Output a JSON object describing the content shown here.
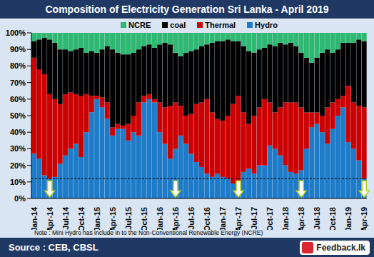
{
  "chart_data": {
    "type": "bar",
    "title": "Composition of Electricity Generation Sri Lanka - April 2019",
    "stacked": true,
    "grid": false,
    "legend": "top",
    "categories": [
      "Jan-14",
      null,
      null,
      "Apr-14",
      null,
      null,
      "Jul-14",
      null,
      null,
      "Oct-14",
      null,
      null,
      "Jan-15",
      null,
      null,
      "Apr-15",
      null,
      null,
      "Jul-15",
      null,
      null,
      "Oct-15",
      null,
      null,
      "Jan-16",
      null,
      null,
      "Apr-16",
      null,
      null,
      "Jul-16",
      null,
      null,
      "Oct-16",
      null,
      null,
      "Jan-17",
      null,
      null,
      "Apr-17",
      null,
      null,
      "Jul-17",
      null,
      null,
      "Oct-17",
      null,
      null,
      "Jan-18",
      null,
      null,
      "Apr-18",
      null,
      null,
      "Jul-18",
      null,
      null,
      "Oct-18",
      null,
      null,
      "Jan-19",
      null,
      null,
      "Apr-19"
    ],
    "series": [
      {
        "name": "NCRE",
        "color": "#2EB872",
        "values": [
          5,
          4,
          3,
          4,
          6,
          10,
          10,
          11,
          10,
          9,
          12,
          11,
          12,
          10,
          8,
          10,
          12,
          13,
          13,
          12,
          10,
          8,
          7,
          9,
          7,
          6,
          7,
          12,
          14,
          12,
          11,
          10,
          8,
          7,
          6,
          5,
          5,
          4,
          5,
          5,
          8,
          11,
          12,
          10,
          9,
          7,
          8,
          6,
          7,
          6,
          8,
          12,
          15,
          18,
          15,
          12,
          10,
          12,
          10,
          6,
          6,
          6,
          4,
          5
        ]
      },
      {
        "name": "coal",
        "color": "#000000",
        "values": [
          10,
          18,
          22,
          33,
          34,
          33,
          27,
          25,
          27,
          29,
          25,
          27,
          26,
          29,
          34,
          47,
          43,
          43,
          42,
          38,
          32,
          30,
          30,
          31,
          35,
          39,
          37,
          30,
          30,
          38,
          38,
          33,
          34,
          33,
          42,
          47,
          48,
          46,
          38,
          33,
          40,
          44,
          38,
          35,
          31,
          35,
          40,
          39,
          35,
          36,
          34,
          33,
          33,
          30,
          33,
          38,
          35,
          30,
          30,
          32,
          26,
          36,
          40,
          40
        ]
      },
      {
        "name": "Thermal",
        "color": "#CC0000",
        "values": [
          58,
          54,
          61,
          51,
          47,
          36,
          37,
          34,
          30,
          37,
          23,
          10,
          2,
          6,
          10,
          5,
          3,
          2,
          10,
          10,
          20,
          4,
          3,
          2,
          18,
          22,
          32,
          28,
          18,
          17,
          24,
          35,
          39,
          45,
          39,
          33,
          34,
          38,
          48,
          52,
          36,
          27,
          35,
          35,
          40,
          26,
          22,
          29,
          38,
          42,
          43,
          38,
          22,
          9,
          7,
          10,
          22,
          16,
          10,
          7,
          34,
          28,
          33,
          43
        ]
      },
      {
        "name": "Hydro",
        "color": "#1E7BC8",
        "values": [
          27,
          24,
          14,
          12,
          13,
          21,
          26,
          30,
          33,
          25,
          40,
          52,
          60,
          55,
          48,
          38,
          42,
          42,
          35,
          40,
          38,
          58,
          60,
          58,
          40,
          33,
          24,
          30,
          38,
          33,
          27,
          22,
          19,
          15,
          13,
          15,
          13,
          12,
          9,
          10,
          16,
          18,
          15,
          20,
          20,
          32,
          30,
          26,
          20,
          16,
          15,
          17,
          30,
          43,
          45,
          40,
          33,
          42,
          50,
          55,
          34,
          30,
          23,
          12
        ]
      }
    ],
    "ylim": [
      0,
      100
    ],
    "yticks": [
      {
        "value": 0,
        "label": "0%"
      },
      {
        "value": 10,
        "label": "10%"
      },
      {
        "value": 20,
        "label": "20%"
      },
      {
        "value": 30,
        "label": "30%"
      },
      {
        "value": 40,
        "label": "40%"
      },
      {
        "value": 50,
        "label": "50%"
      },
      {
        "value": 60,
        "label": "60%"
      },
      {
        "value": 70,
        "label": "70%"
      },
      {
        "value": 80,
        "label": "80%"
      },
      {
        "value": 90,
        "label": "90%"
      },
      {
        "value": 100,
        "label": "100%"
      }
    ],
    "threshold": 12,
    "note": "Note : Mini Hydro has include in to the Non-Conventional Renewable Energy (NCRE)",
    "source": "Source : CEB, CBSL",
    "logo": "Feedback.lk"
  }
}
